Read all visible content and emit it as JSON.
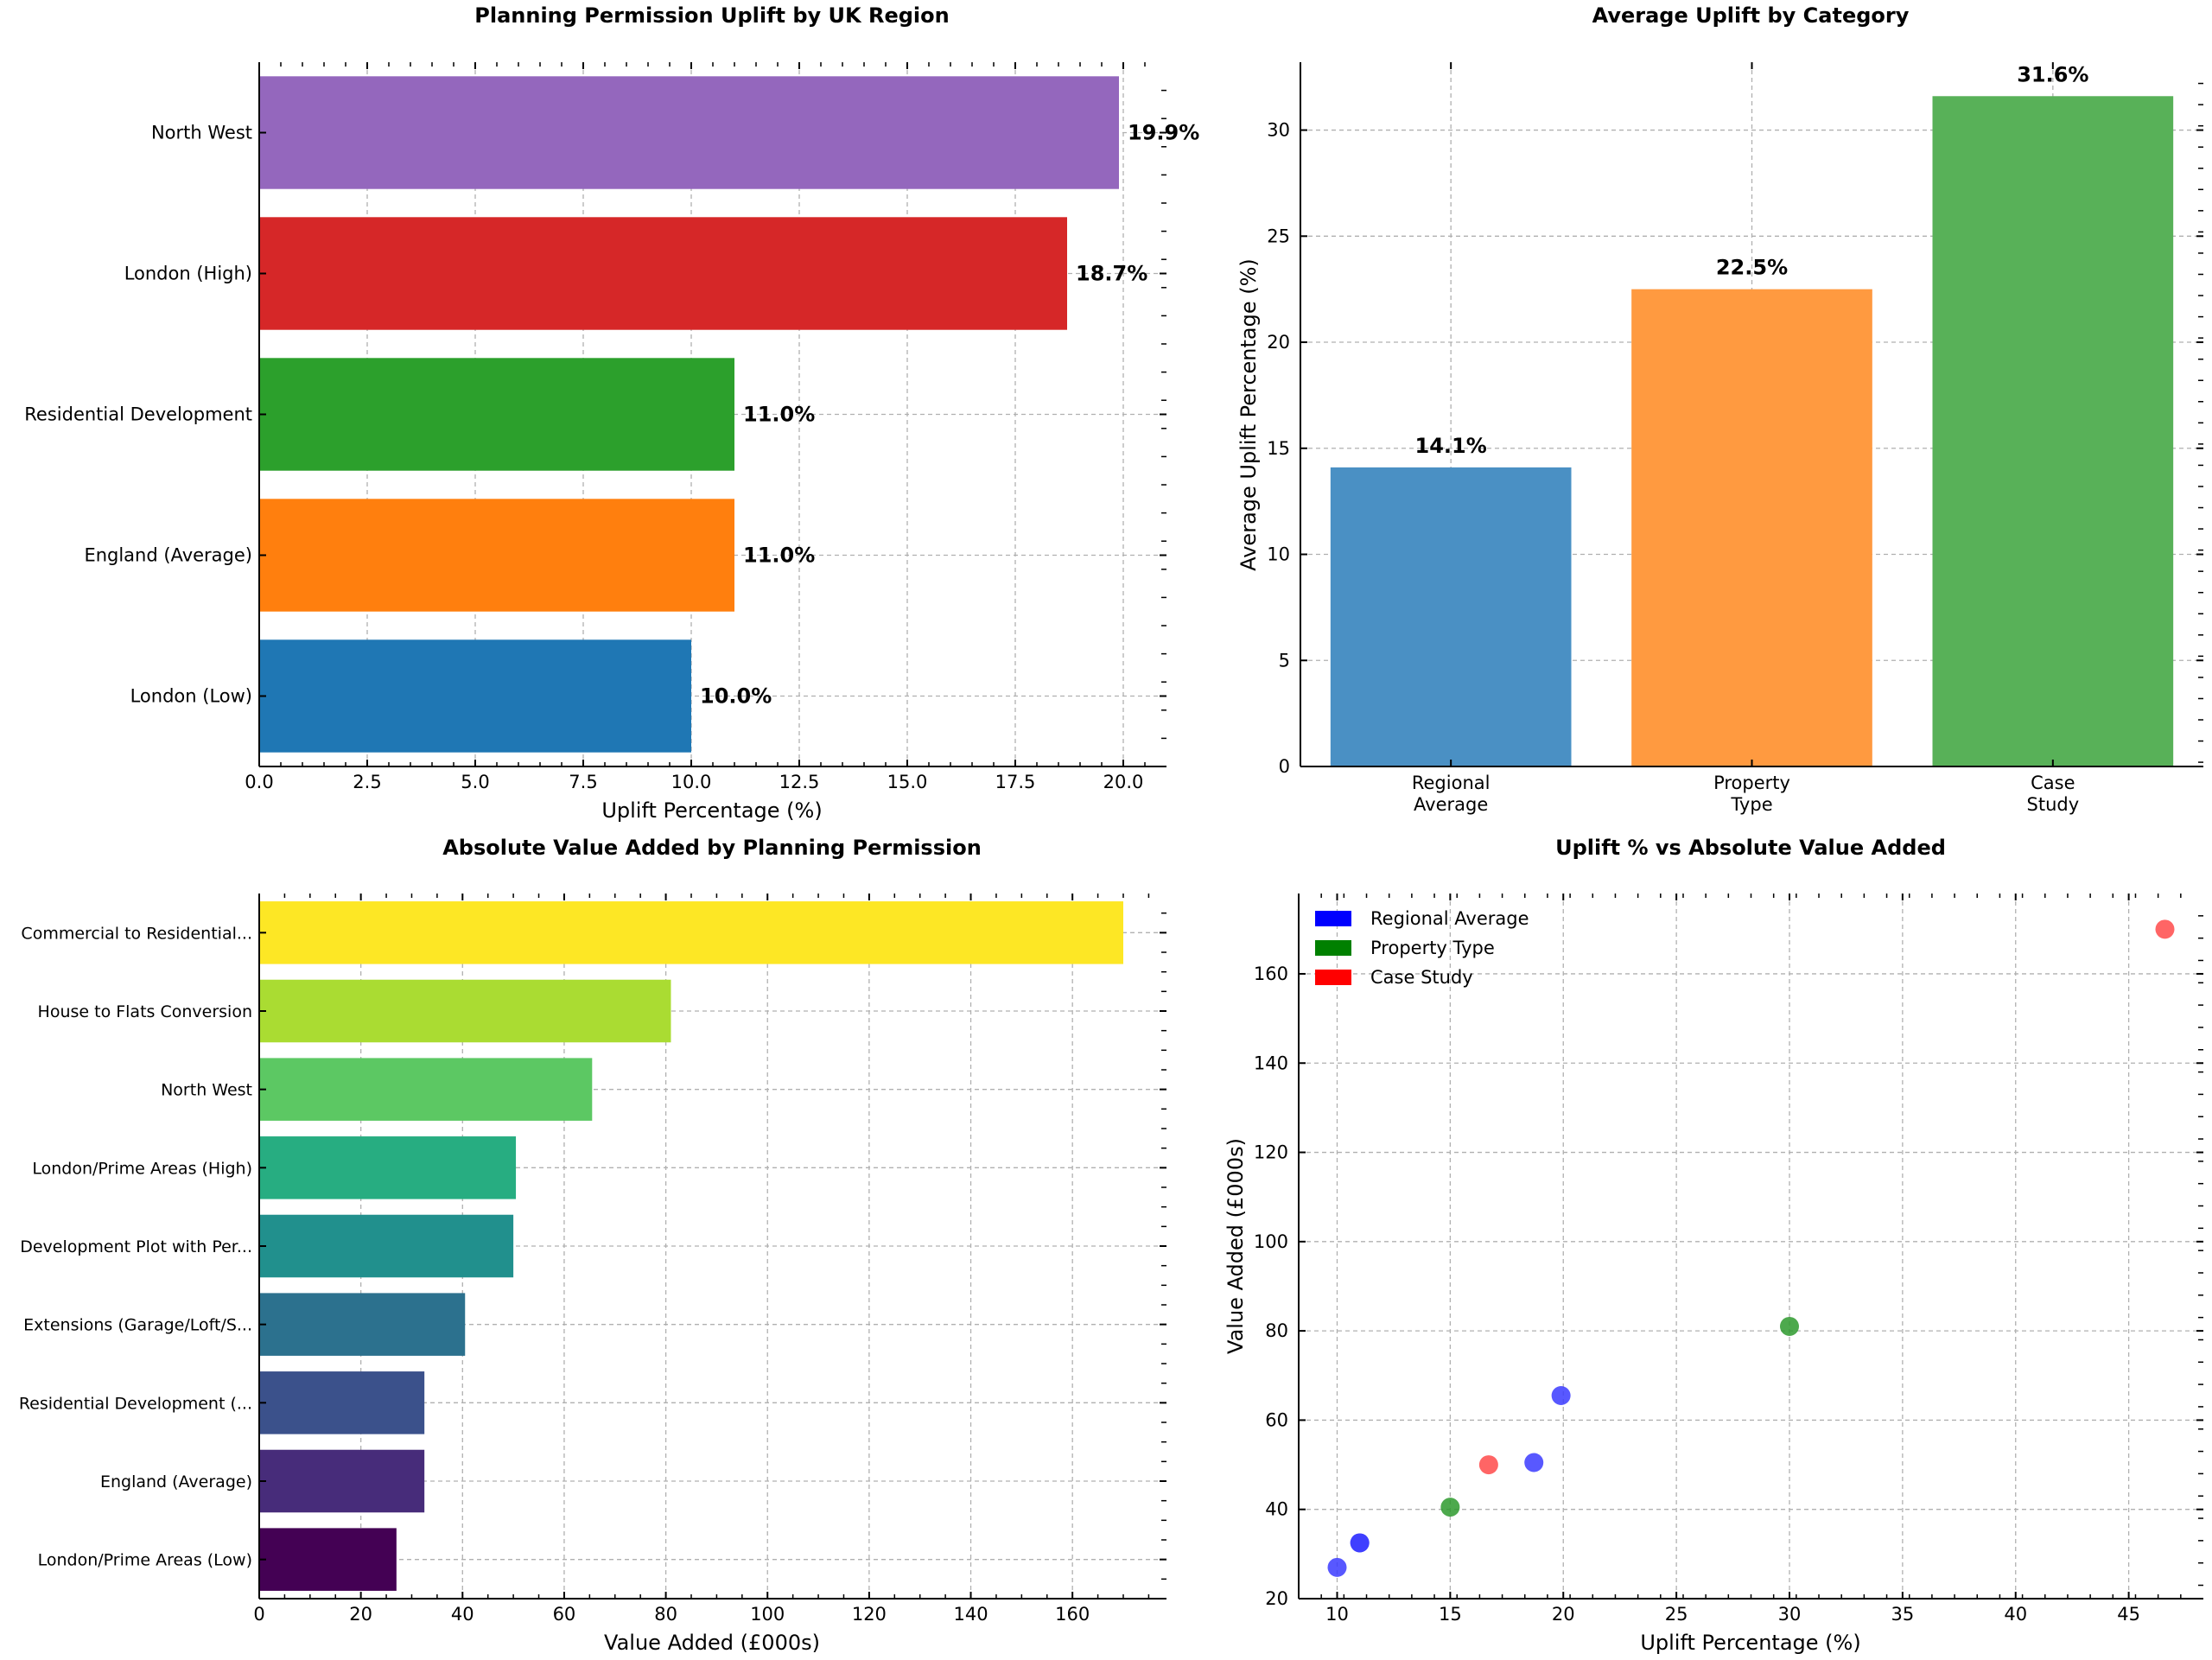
{
  "chart_data": [
    {
      "type": "bar",
      "orientation": "horizontal",
      "title": "Planning Permission Uplift by UK Region",
      "xlabel": "Uplift Percentage (%)",
      "ylabel": "",
      "xlim": [
        0,
        21
      ],
      "xticks": [
        "0.0",
        "2.5",
        "5.0",
        "7.5",
        "10.0",
        "12.5",
        "15.0",
        "17.5",
        "20.0"
      ],
      "categories": [
        "London (Low)",
        "England (Average)",
        "Residential Development",
        "London (High)",
        "North West"
      ],
      "values": [
        10.0,
        11.0,
        11.0,
        18.7,
        19.9
      ],
      "data_labels": [
        "10.0%",
        "11.0%",
        "11.0%",
        "18.7%",
        "19.9%"
      ],
      "colors": [
        "#1f77b4",
        "#ff7f0e",
        "#2ca02c",
        "#d62728",
        "#9467bd"
      ],
      "grid": true
    },
    {
      "type": "bar",
      "title": "Average Uplift by Category",
      "xlabel": "",
      "ylabel": "Average Uplift Percentage (%)",
      "ylim": [
        0,
        33.2
      ],
      "yticks": [
        "0",
        "5",
        "10",
        "15",
        "20",
        "25",
        "30"
      ],
      "categories": [
        [
          "Regional",
          "Average"
        ],
        [
          "Property",
          "Type"
        ],
        [
          "Case",
          "Study"
        ]
      ],
      "values": [
        14.1,
        22.5,
        31.6
      ],
      "data_labels": [
        "14.1%",
        "22.5%",
        "31.6%"
      ],
      "colors": [
        "#4a90c4",
        "#ff9a40",
        "#58b158"
      ],
      "grid": true
    },
    {
      "type": "bar",
      "orientation": "horizontal",
      "title": "Absolute Value Added by Planning Permission",
      "xlabel": "Value Added (£000s)",
      "ylabel": "",
      "xlim": [
        0,
        178.5
      ],
      "xticks": [
        "0",
        "20",
        "40",
        "60",
        "80",
        "100",
        "120",
        "140",
        "160"
      ],
      "categories": [
        "London/Prime Areas (Low)",
        "England (Average)",
        "Residential Development (...",
        "Extensions (Garage/Loft/S...",
        "Development Plot with Per...",
        "London/Prime Areas (High)",
        "North West",
        "House to Flats Conversion",
        "Commercial to Residential..."
      ],
      "values": [
        27,
        32.5,
        32.5,
        40.5,
        50,
        50.5,
        65.5,
        81,
        170
      ],
      "colors": [
        "#440154",
        "#472c7a",
        "#3b518b",
        "#2c718e",
        "#21908d",
        "#27ad81",
        "#5cc863",
        "#aadc32",
        "#fde725"
      ],
      "grid": true
    },
    {
      "type": "scatter",
      "title": "Uplift % vs Absolute Value Added",
      "xlabel": "Uplift Percentage (%)",
      "ylabel": "Value Added (£000s)",
      "xlim": [
        8.3,
        48.3
      ],
      "ylim": [
        20,
        178
      ],
      "xticks": [
        "10",
        "15",
        "20",
        "25",
        "30",
        "35",
        "40",
        "45"
      ],
      "yticks": [
        "20",
        "40",
        "60",
        "80",
        "100",
        "120",
        "140",
        "160"
      ],
      "legend": {
        "placement": "top-left",
        "entries": [
          {
            "label": "Regional Average",
            "color": "#0000ff"
          },
          {
            "label": "Property Type",
            "color": "#008000"
          },
          {
            "label": "Case Study",
            "color": "#ff0000"
          }
        ]
      },
      "series": [
        {
          "name": "Regional Average",
          "color": "#3b3bff",
          "points": [
            [
              10.0,
              27
            ],
            [
              11.0,
              32.5
            ],
            [
              11.0,
              32.5
            ],
            [
              18.7,
              50.5
            ],
            [
              19.9,
              65.5
            ]
          ]
        },
        {
          "name": "Property Type",
          "color": "#2e9a2e",
          "points": [
            [
              15.0,
              40.5
            ],
            [
              30.0,
              81
            ]
          ]
        },
        {
          "name": "Case Study",
          "color": "#ff4a4a",
          "points": [
            [
              16.7,
              50
            ],
            [
              46.6,
              170
            ]
          ]
        }
      ],
      "grid": true
    }
  ]
}
